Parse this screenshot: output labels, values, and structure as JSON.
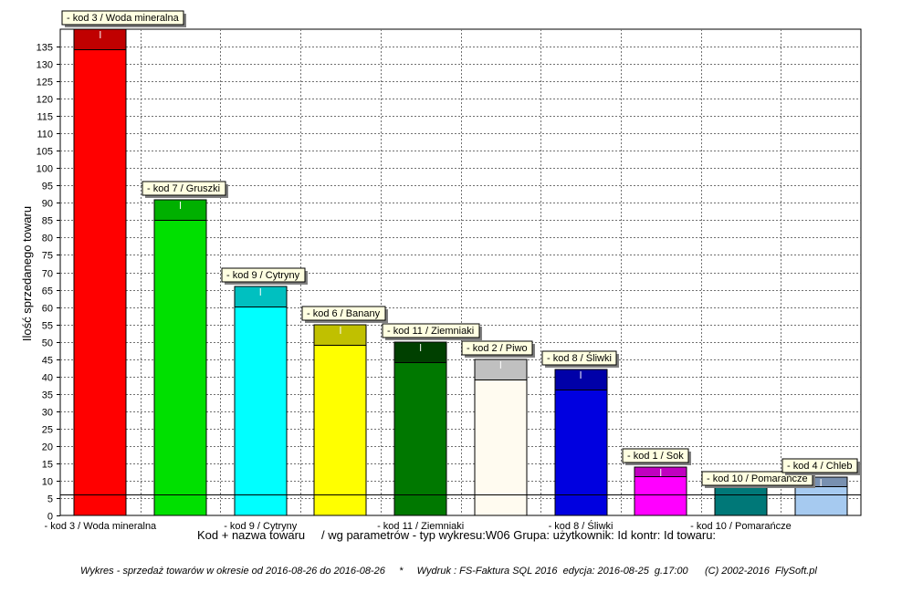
{
  "chart_data": {
    "type": "bar",
    "title": "",
    "xlabel": "Kod + nazwa towaru",
    "xlabel_suffix": "/ wg parametrów - typ wykresu:W06 Grupa: użytkownik: Id kontr: Id towaru:",
    "ylabel": "Ilość sprzedanego towaru",
    "ylim": [
      0,
      140
    ],
    "yticks": [
      0,
      5,
      10,
      15,
      20,
      25,
      30,
      35,
      40,
      45,
      50,
      55,
      60,
      65,
      70,
      75,
      80,
      85,
      90,
      95,
      100,
      105,
      110,
      115,
      120,
      125,
      130,
      135
    ],
    "grid": true,
    "reference_line": 6,
    "categories": [
      "-  kod 3 / Woda mineralna",
      "-  kod 7 / Gruszki",
      "-  kod 9 / Cytryny",
      "-  kod 6 / Banany",
      "-  kod 11 / Ziemniaki",
      "-  kod 2 / Piwo",
      "-  kod 8 / Śliwki",
      "-  kod 1 / Sok",
      "-  kod 10 / Pomarańcze",
      "-  kod 4 / Chleb"
    ],
    "x_tick_labels": [
      "-  kod 3 / Woda mineralna",
      "",
      "-  kod 9 / Cytryny",
      "",
      "-  kod 11 / Ziemniaki",
      "",
      "-  kod 8 / Śliwki",
      "",
      "-  kod 10 / Pomarańcze",
      ""
    ],
    "values": [
      140,
      91,
      66,
      55,
      50,
      45,
      42,
      14,
      11,
      11
    ],
    "colors": [
      "#ff0000",
      "#00e000",
      "#00ffff",
      "#ffff00",
      "#007800",
      "#fffbf0",
      "#0000e0",
      "#ff00ff",
      "#007878",
      "#a6caf0"
    ],
    "cap_colors": [
      "#c00000",
      "#00b000",
      "#00c0c0",
      "#c0c000",
      "#004000",
      "#c0c0c0",
      "#0000a8",
      "#c000c0",
      "#004040",
      "#7890b0"
    ]
  },
  "footer": {
    "text": "Wykres - sprzedaż towarów w okresie od 2016-08-26 do 2016-08-26     *     Wydruk : FS-Faktura SQL 2016  edycja: 2016-08-25  g.17:00      (C) 2002-2016  FlySoft.pl"
  }
}
